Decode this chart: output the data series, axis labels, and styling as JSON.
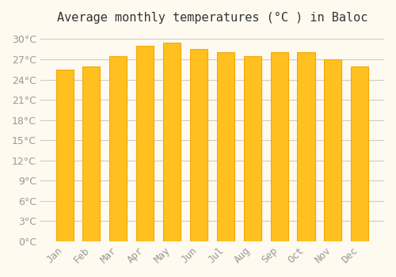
{
  "title": "Average monthly temperatures (°C ) in Baloc",
  "months": [
    "Jan",
    "Feb",
    "Mar",
    "Apr",
    "May",
    "Jun",
    "Jul",
    "Aug",
    "Sep",
    "Oct",
    "Nov",
    "Dec"
  ],
  "temperatures": [
    25.5,
    26.0,
    27.5,
    29.0,
    29.5,
    28.5,
    28.0,
    27.5,
    28.0,
    28.0,
    27.0,
    26.0
  ],
  "bar_color_main": "#FFC020",
  "bar_color_edge": "#F5A800",
  "background_color": "#FFFAF0",
  "grid_color": "#CCCCCC",
  "ylim": [
    0,
    31
  ],
  "ytick_step": 3,
  "title_fontsize": 11,
  "tick_fontsize": 9,
  "tick_color": "#999999",
  "axis_label_color": "#999999"
}
